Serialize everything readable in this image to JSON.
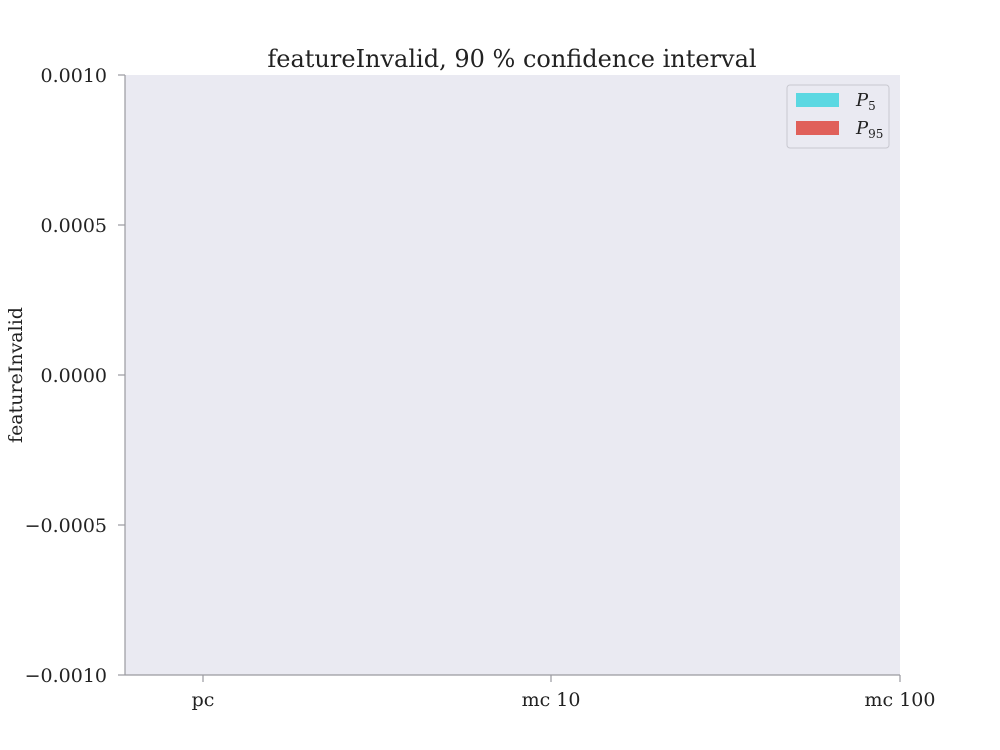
{
  "chart_data": {
    "type": "bar",
    "title": "featureInvalid, 90 % confidence interval",
    "xlabel": "",
    "ylabel": "featureInvalid",
    "categories": [
      "pc",
      "mc 10",
      "mc 100"
    ],
    "yticks": [
      "0.0010",
      "0.0005",
      "0.0000",
      "−0.0005",
      "−0.0010"
    ],
    "ytick_values": [
      0.001,
      0.0005,
      0.0,
      -0.0005,
      -0.001
    ],
    "ylim": [
      -0.001,
      0.001
    ],
    "grid": false,
    "legend_position": "top-right",
    "series": [
      {
        "name": "P",
        "subscript": "5",
        "color": "#5bd8e2",
        "values": [
          0,
          0,
          0
        ]
      },
      {
        "name": "P",
        "subscript": "95",
        "color": "#e0605a",
        "values": [
          0,
          0,
          0
        ]
      }
    ],
    "plot_background": "#eaeaf2",
    "axis_color": "#9a9aa0"
  }
}
